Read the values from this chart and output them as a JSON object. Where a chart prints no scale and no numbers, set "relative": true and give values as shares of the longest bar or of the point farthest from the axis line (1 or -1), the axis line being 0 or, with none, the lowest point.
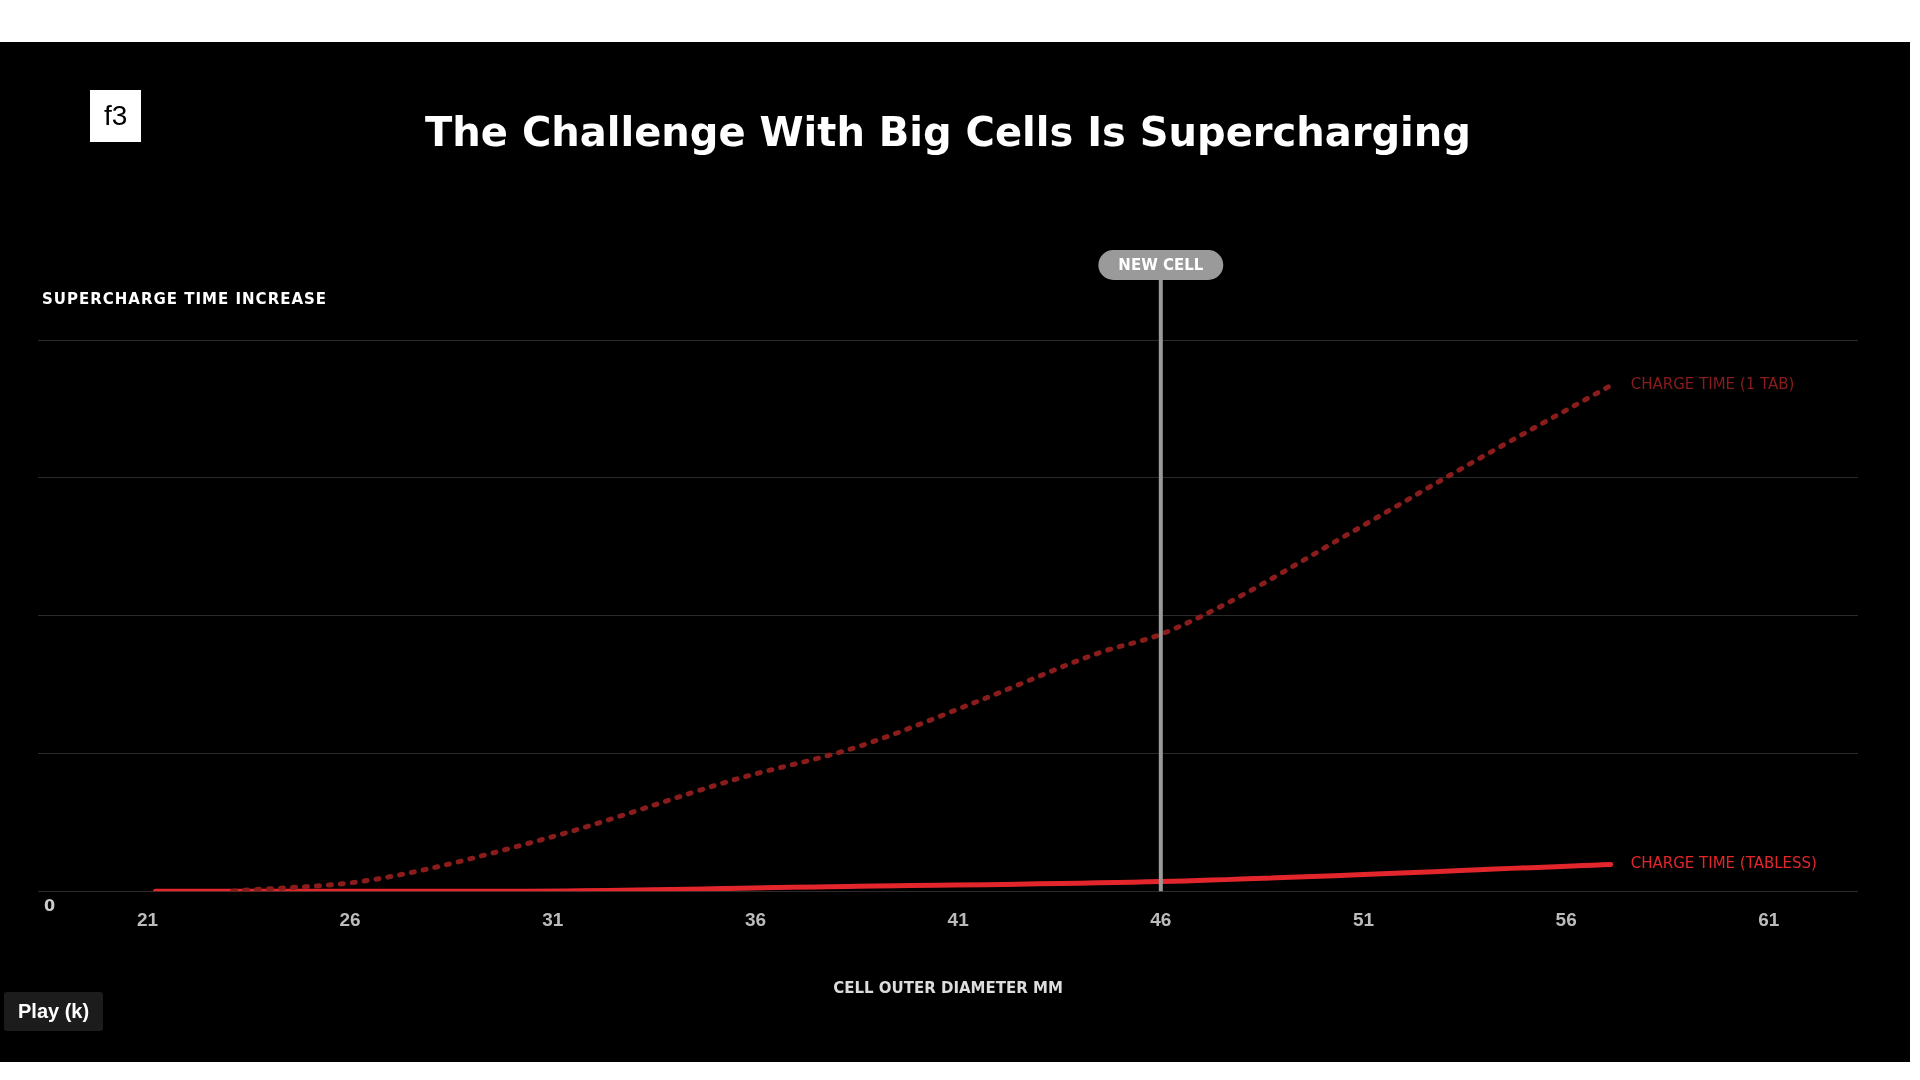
{
  "chart_data": {
    "type": "line",
    "title": "The Challenge With Big Cells Is Supercharging",
    "xlabel": "CELL OUTER DIAMETER MM",
    "relative": true,
    "xlim": [
      18.3,
      63.2
    ],
    "xticks": [
      21,
      26,
      31,
      36,
      41,
      46,
      51,
      56,
      61
    ],
    "grid": "y",
    "legend": false,
    "marker": "none",
    "series": [
      {
        "name": "CHARGE TIME (1 TAB)",
        "color": "#8a1c1c",
        "line_style": "dotted",
        "x": [
          23.1,
          26.5,
          31.0,
          35.5,
          38.5,
          41.5,
          44.5,
          46.0,
          47.6,
          50.6,
          53.6,
          57.1
        ],
        "values": [
          0,
          0.022,
          0.108,
          0.221,
          0.285,
          0.376,
          0.472,
          0.508,
          0.568,
          0.705,
          0.844,
          1
        ]
      },
      {
        "name": "CHARGE TIME (TABLESS)",
        "color": "#e3262b",
        "line_style": "solid",
        "x": [
          21.2,
          29.5,
          38.5,
          46.0,
          57.1
        ],
        "values": [
          0,
          0,
          0.01,
          0.019,
          0.053
        ]
      }
    ],
    "ref_lines": [
      {
        "axis": "x",
        "value": 46,
        "label": "NEW CELL",
        "color": "#9a9a9a"
      }
    ],
    "annotations": [
      "f3",
      "SUPERCHARGE TIME INCREASE",
      "0",
      "Play (k)"
    ]
  }
}
